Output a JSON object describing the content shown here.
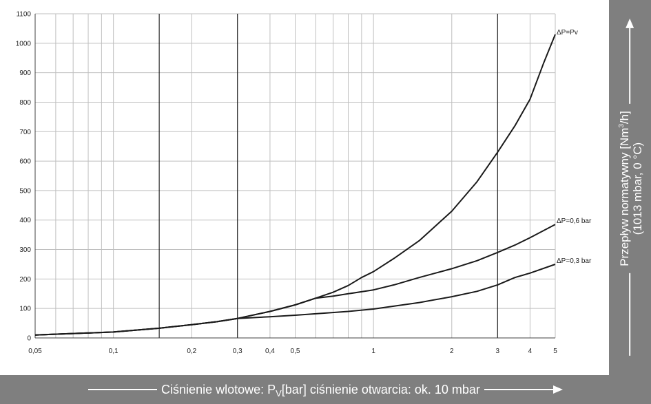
{
  "chart_data": {
    "type": "line",
    "xscale": "log",
    "xlim": [
      0.05,
      5
    ],
    "ylim": [
      0,
      1100
    ],
    "yticks": [
      0,
      100,
      200,
      300,
      400,
      500,
      600,
      700,
      800,
      900,
      1000,
      1100
    ],
    "xticks": [
      {
        "value": 0.05,
        "label": "0,05"
      },
      {
        "value": 0.1,
        "label": "0,1"
      },
      {
        "value": 0.2,
        "label": "0,2"
      },
      {
        "value": 0.3,
        "label": "0,3"
      },
      {
        "value": 0.4,
        "label": "0,4"
      },
      {
        "value": 0.5,
        "label": "0,5"
      },
      {
        "value": 1,
        "label": "1"
      },
      {
        "value": 2,
        "label": "2"
      },
      {
        "value": 3,
        "label": "3"
      },
      {
        "value": 4,
        "label": "4"
      },
      {
        "value": 5,
        "label": "5"
      }
    ],
    "major_gridlines_x": [
      0.15,
      0.3,
      3
    ],
    "grid": true,
    "xlabel": {
      "before": "Ciśnienie wlotowe: P",
      "sub": "V",
      "after": " [bar] ciśnienie otwarcia: ok. 10 mbar"
    },
    "ylabel": {
      "line1": "Przepływ normatywny [Nm",
      "sup": "3",
      "line1_end": "/h]",
      "line2": "(1013 mbar, 0 °C)"
    },
    "series": [
      {
        "name": "ΔP=Pv",
        "x": [
          0.05,
          0.1,
          0.15,
          0.2,
          0.25,
          0.3,
          0.4,
          0.5,
          0.6,
          0.7,
          0.8,
          0.9,
          1.0,
          1.2,
          1.5,
          2.0,
          2.5,
          3.0,
          3.5,
          4.0,
          4.5,
          5.0
        ],
        "y": [
          10,
          20,
          33,
          45,
          55,
          66,
          90,
          112,
          135,
          155,
          178,
          205,
          225,
          270,
          330,
          430,
          530,
          630,
          720,
          810,
          930,
          1030
        ]
      },
      {
        "name": "ΔP=0,6 bar",
        "x": [
          0.05,
          0.1,
          0.15,
          0.2,
          0.25,
          0.3,
          0.4,
          0.5,
          0.6,
          0.7,
          0.8,
          1.0,
          1.2,
          1.5,
          2.0,
          2.5,
          3.0,
          3.5,
          4.0,
          5.0
        ],
        "y": [
          10,
          20,
          33,
          45,
          55,
          66,
          90,
          112,
          135,
          142,
          150,
          163,
          180,
          205,
          235,
          262,
          290,
          315,
          340,
          385
        ]
      },
      {
        "name": "ΔP=0,3 bar",
        "x": [
          0.05,
          0.1,
          0.15,
          0.2,
          0.25,
          0.3,
          0.4,
          0.5,
          0.6,
          0.8,
          1.0,
          1.5,
          2.0,
          2.5,
          3.0,
          3.5,
          4.0,
          5.0
        ],
        "y": [
          10,
          20,
          33,
          45,
          55,
          66,
          72,
          77,
          82,
          90,
          98,
          120,
          140,
          158,
          180,
          205,
          220,
          250
        ]
      }
    ]
  },
  "colors": {
    "axis_panel": "#7f7f7f",
    "curve": "#1a1a1a",
    "grid_minor": "#bfbfbf",
    "grid_major": "#000000"
  }
}
